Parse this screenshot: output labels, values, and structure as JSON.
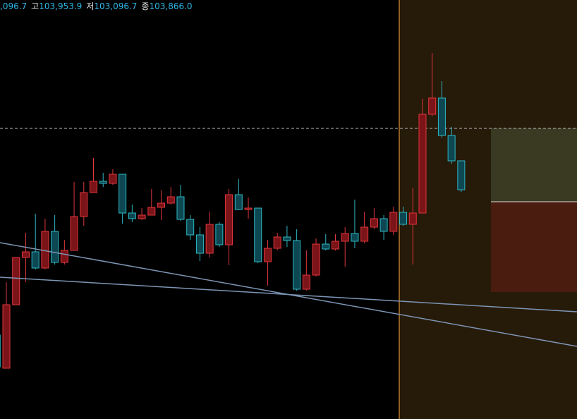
{
  "chart_data": {
    "type": "candlestick",
    "ohlc_legend": [
      {
        "value": ",096.7"
      },
      {
        "label": "고",
        "value": "103,953.9"
      },
      {
        "label": "저",
        "value": "103,096.7"
      },
      {
        "label": "종",
        "value": "103,866.0"
      }
    ],
    "ylim": [
      100060,
      106000
    ],
    "up_color": "#e0363c",
    "down_color": "#2fb7c4",
    "price_line": 104180,
    "open": [
      101250,
      100780,
      101680,
      102350,
      102430,
      102200,
      102720,
      102280,
      102450,
      102930,
      103270,
      103430,
      103400,
      103530,
      102980,
      102900,
      102950,
      103060,
      103120,
      103210,
      102890,
      102670,
      102410,
      102820,
      102530,
      103240,
      103030,
      103050,
      102290,
      102480,
      102640,
      102590,
      101900,
      102100,
      102540,
      102470,
      102580,
      102690,
      102580,
      102780,
      102900,
      102720,
      102990,
      102820,
      102980,
      104380,
      104610,
      104080,
      103720
    ],
    "high": [
      101300,
      102000,
      102350,
      102700,
      102970,
      102900,
      102950,
      102600,
      103420,
      103420,
      103760,
      103550,
      103600,
      103530,
      103100,
      103050,
      103320,
      103300,
      103350,
      103380,
      102950,
      102780,
      103000,
      102850,
      103320,
      103460,
      103200,
      103050,
      102600,
      102700,
      102800,
      102750,
      102450,
      102620,
      102680,
      102680,
      102780,
      103170,
      103000,
      103050,
      102950,
      103070,
      103070,
      103340,
      104600,
      105250,
      104850,
      104200,
      103720
    ],
    "low": [
      100750,
      100780,
      101680,
      102000,
      102180,
      102180,
      102250,
      102250,
      102450,
      102800,
      103270,
      103350,
      103380,
      102830,
      102850,
      102880,
      102950,
      102880,
      103100,
      102870,
      102600,
      102300,
      102350,
      102500,
      102240,
      103020,
      102900,
      102270,
      101950,
      102450,
      102500,
      101880,
      101880,
      102080,
      102450,
      102450,
      102220,
      102480,
      102550,
      102750,
      102600,
      102670,
      102800,
      102250,
      102980,
      104350,
      104050,
      103680,
      103280
    ],
    "close": [
      100800,
      101680,
      102350,
      102430,
      102200,
      102720,
      102280,
      102450,
      102930,
      103270,
      103430,
      103400,
      103530,
      102980,
      102900,
      102950,
      103060,
      103120,
      103210,
      102890,
      102670,
      102410,
      102820,
      102530,
      103240,
      103030,
      103050,
      102290,
      102480,
      102640,
      102590,
      101900,
      102100,
      102540,
      102470,
      102580,
      102690,
      102580,
      102780,
      102900,
      102720,
      102990,
      102820,
      102980,
      104380,
      104610,
      104080,
      103720,
      103310
    ]
  }
}
